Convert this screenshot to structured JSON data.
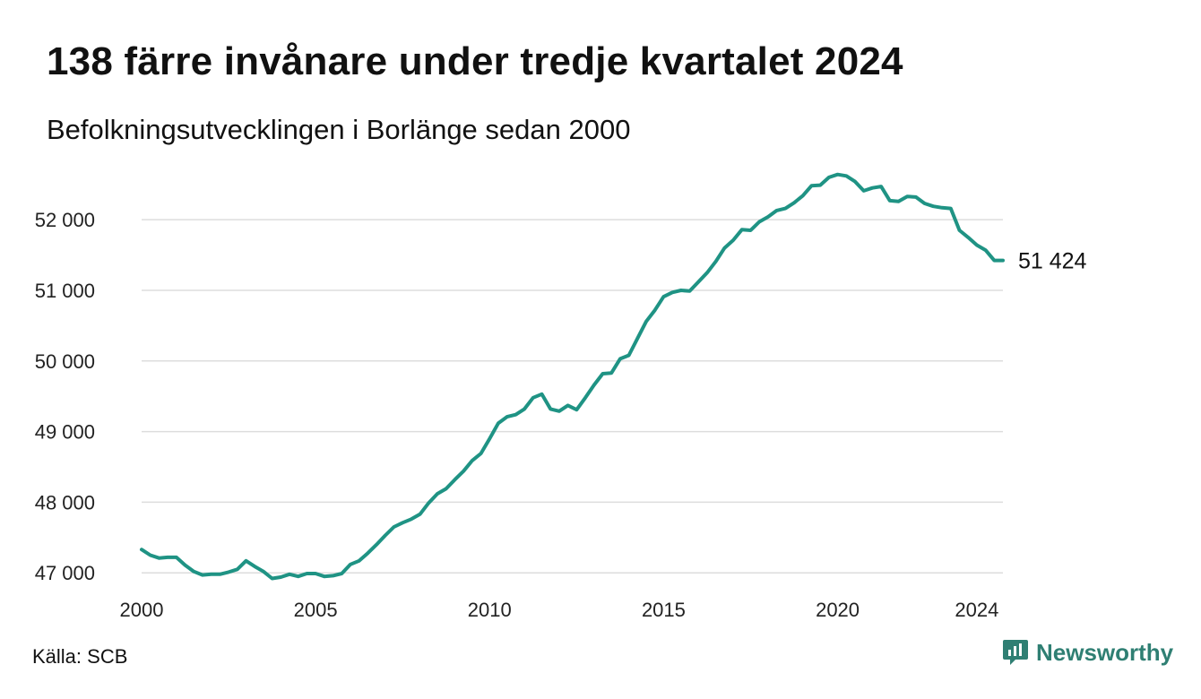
{
  "title": "138 färre invånare under tredje kvartalet 2024",
  "subtitle": "Befolkningsutvecklingen i Borlänge sedan 2000",
  "source": "Källa: SCB",
  "brand": {
    "name": "Newsworthy",
    "icon": "newsworthy-logo-icon",
    "color": "#2f7f73"
  },
  "chart_data": {
    "type": "line",
    "title": "138 färre invånare under tredje kvartalet 2024",
    "subtitle": "Befolkningsutvecklingen i Borlänge sedan 2000",
    "xlabel": "",
    "ylabel": "",
    "xlim": [
      2000,
      2024.75
    ],
    "ylim": [
      46800,
      52700
    ],
    "x_ticks": [
      2000,
      2005,
      2010,
      2015,
      2020,
      2024
    ],
    "x_tick_labels": [
      "2000",
      "2005",
      "2010",
      "2015",
      "2020",
      "2024"
    ],
    "y_ticks": [
      47000,
      48000,
      49000,
      50000,
      51000,
      52000
    ],
    "y_tick_labels": [
      "47 000",
      "48 000",
      "49 000",
      "50 000",
      "51 000",
      "52 000"
    ],
    "grid": "horizontal",
    "line_color": "#1f9384",
    "end_label": "51 424",
    "series": [
      {
        "x": [
          2000.0,
          2000.25,
          2000.5,
          2000.75,
          2001.0,
          2001.25,
          2001.5,
          2001.75,
          2002.0,
          2002.25,
          2002.5,
          2002.75,
          2003.0,
          2003.25,
          2003.5,
          2003.75,
          2004.0,
          2004.25,
          2004.5,
          2004.75,
          2005.0,
          2005.25,
          2005.5,
          2005.75,
          2006.0,
          2006.25,
          2006.5,
          2006.75,
          2007.0,
          2007.25,
          2007.5,
          2007.75,
          2008.0,
          2008.25,
          2008.5,
          2008.75,
          2009.0,
          2009.25,
          2009.5,
          2009.75,
          2010.0,
          2010.25,
          2010.5,
          2010.75,
          2011.0,
          2011.25,
          2011.5,
          2011.75,
          2012.0,
          2012.25,
          2012.5,
          2012.75,
          2013.0,
          2013.25,
          2013.5,
          2013.75,
          2014.0,
          2014.25,
          2014.5,
          2014.75,
          2015.0,
          2015.25,
          2015.5,
          2015.75,
          2016.0,
          2016.25,
          2016.5,
          2016.75,
          2017.0,
          2017.25,
          2017.5,
          2017.75,
          2018.0,
          2018.25,
          2018.5,
          2018.75,
          2019.0,
          2019.25,
          2019.5,
          2019.75,
          2020.0,
          2020.25,
          2020.5,
          2020.75,
          2021.0,
          2021.25,
          2021.5,
          2021.75,
          2022.0,
          2022.25,
          2022.5,
          2022.75,
          2023.0,
          2023.25,
          2023.5,
          2023.75,
          2024.0,
          2024.25,
          2024.5,
          2024.75
        ],
        "y": [
          47330,
          47250,
          47210,
          47220,
          47220,
          47110,
          47020,
          46970,
          46980,
          46980,
          47010,
          47050,
          47170,
          47090,
          47020,
          46920,
          46940,
          46980,
          46950,
          46990,
          46990,
          46950,
          46960,
          46990,
          47120,
          47170,
          47280,
          47400,
          47530,
          47650,
          47710,
          47760,
          47830,
          47990,
          48120,
          48190,
          48320,
          48440,
          48590,
          48690,
          48900,
          49120,
          49210,
          49240,
          49320,
          49480,
          49530,
          49320,
          49290,
          49370,
          49310,
          49480,
          49660,
          49820,
          49830,
          50030,
          50080,
          50320,
          50560,
          50720,
          50910,
          50970,
          51000,
          50990,
          51120,
          51250,
          51410,
          51600,
          51710,
          51860,
          51850,
          51970,
          52040,
          52130,
          52160,
          52240,
          52340,
          52480,
          52490,
          52600,
          52640,
          52620,
          52540,
          52410,
          52450,
          52470,
          52270,
          52260,
          52330,
          52320,
          52230,
          52190,
          52170,
          52160,
          51850,
          51750,
          51640,
          51570,
          51424,
          51424
        ]
      }
    ]
  }
}
